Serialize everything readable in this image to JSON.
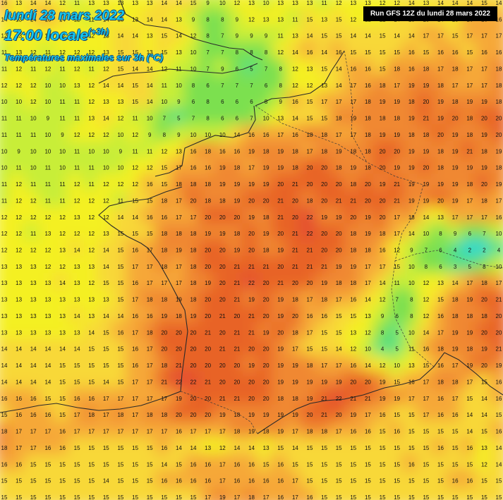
{
  "header": {
    "date": "lundi 28 mars 2022",
    "time": "17:00 locale",
    "offset": "(+3h)",
    "parameter": "Températures maximales sur 3h (°C)"
  },
  "run_label": "Run GFS 12Z du lundi 28 mars 2022",
  "units": "°C",
  "colors": {
    "c0": "#1ad8d0",
    "c4": "#58e080",
    "c8": "#7ce050",
    "c11": "#c8ee38",
    "c13": "#f4f020",
    "c15": "#f8d838",
    "c17": "#f6a838",
    "c19": "#f08830",
    "c21": "#e86428",
    "c22": "#e44c30"
  },
  "grid_values": [
    "16 13 14 14 12 11 13 13 13 13 13 14 14 15 9 10 12 13 10 13 13 13 11 12 13 13 12 12 14 13 14 14 14 15 14",
    "14 13 14 16 14 12 11 14 13 13 14 14 13 9 8 8 9 12 13 13 11 15 13 15 12 12 12 14 15 15 14 13 16 16 16",
    "12 13 12 13 12 12 12 13 14 14 13 15 14 12 8 7 9 9 9 11 13 14 15 15 14 14 15 14 14 17 17 15 17 17 17",
    "11 13 12 11 12 12 12 13 15 15 13 15 13 10 7 7 8 8 8 12 14 16 14 16 15 15 15 15 16 15 16 16 15 16 16",
    "11 12 11 12 11 12 11 12 15 14 14 12 11 10 7 9 6 5 7 8 12 13 15 14 16 16 15 18 16 18 17 18 17 17 18",
    "12 12 12 10 10 13 12 14 14 15 14 11 10 8 6 7 7 7 6 8 12 12 13 14 17 16 18 17 19 19 18 17 17 17 18",
    "10 10 12 10 11 11 12 13 13 15 14 10 9 6 8 6 6 6 8 9 16 15 17 17 17 18 19 19 18 20 19 18 19 19 18",
    "11 11 10 9 11 11 13 14 12 11 10 7 5 7 8 6 6 7 10 13 14 15 15 18 19 18 18 18 19 21 19 20 18 20 20",
    "11 11 11 10 9 12 12 12 10 12 9 8 9 10 10 10 14 16 16 17 16 18 18 17 17 18 19 19 18 18 20 19 18 19 20",
    "10 9 10 10 10 11 10 10 9 11 11 12 13 16 18 16 16 19 18 19 18 17 18 19 18 18 20 20 19 19 18 19 21 18 19",
    "10 11 10 11 10 11 11 10 10 12 12 15 17 16 16 19 18 17 19 19 18 20 20 18 19 18 20 19 19 20 18 19 19 19 18",
    "11 12 11 11 11 12 11 12 12 12 16 15 18 18 18 19 19 19 19 20 21 20 20 20 18 20 19 21 19 19 19 19 18 20 19",
    "11 12 12 11 11 12 12 12 11 15 15 18 17 20 18 18 19 20 20 21 20 18 20 21 21 20 20 21 19 19 20 19 17 18 17",
    "12 12 12 12 12 13 12 12 14 14 16 16 17 17 20 20 20 19 18 21 20 22 19 19 20 19 20 17 18 14 13 17 17 17 16",
    "12 12 11 13 12 12 12 13 15 15 15 18 18 18 19 19 18 20 19 20 21 22 20 20 18 19 18 17 14 10 8 9 6 7 10",
    "12 12 12 12 13 14 12 14 15 16 17 18 19 18 20 20 19 20 18 19 21 21 20 20 18 18 16 12 9 7 6 4 2 2 4",
    "13 13 13 12 12 13 13 14 15 17 17 18 17 18 20 20 21 21 21 20 21 21 21 19 19 17 17 15 10 8 6 3 5 8 10",
    "13 13 13 13 14 13 12 15 15 16 17 17 17 18 19 20 21 22 20 21 20 20 19 18 18 17 14 11 10 12 13 14 17 18 17",
    "13 13 13 13 13 13 13 13 15 17 18 18 19 18 20 20 21 19 20 19 18 17 18 17 16 14 12 7 8 12 15 18 19 20 21",
    "13 13 13 13 13 14 13 14 14 16 16 19 18 19 20 21 20 21 20 19 20 16 16 15 15 13 9 6 8 12 16 18 18 18 20",
    "13 13 13 13 13 13 14 15 16 17 18 20 20 20 21 20 21 21 19 20 18 17 15 15 13 12 8 5 10 14 17 19 19 20 20",
    "14 14 14 14 14 14 15 15 15 16 17 20 20 20 20 21 21 20 20 19 17 15 15 14 12 10 4 5 11 16 18 19 18 19 21",
    "14 14 14 14 15 15 15 15 15 16 17 18 21 20 20 20 20 19 20 19 19 18 17 17 16 14 12 10 13 15 16 17 19 20 19",
    "14 14 14 14 15 15 15 14 15 17 17 21 22 22 21 20 20 20 20 19 19 19 19 19 20 20 19 15 16 17 18 18 17 15 16",
    "16 16 16 15 15 16 16 17 17 17 17 17 19 20 20 21 21 20 20 18 18 19 21 22 21 21 19 19 17 17 16 17 15 14 16",
    "15 16 16 16 15 17 18 17 18 17 18 18 20 20 20 19 18 19 19 19 19 20 21 20 19 17 16 15 15 17 16 16 14 14 15",
    "18 17 17 17 16 17 17 17 17 17 17 17 16 17 17 17 18 19 18 19 17 18 18 17 16 16 15 16 15 15 15 15 14 15 16",
    "18 17 17 16 16 15 15 15 15 15 15 16 14 14 13 12 14 14 13 15 14 15 15 15 15 15 15 15 15 15 16 15 16 13 14",
    "16 16 15 15 15 15 15 15 15 15 15 14 15 16 16 17 16 16 15 16 15 15 15 15 15 15 15 15 16 15 15 15 15 12 14",
    "15 15 15 15 15 15 15 14 15 15 15 16 16 16 16 17 16 16 16 16 17 15 15 15 15 15 15 15 15 15 15 16 16 15 15",
    "15 15 15 15 15 15 15 15 15 15 15 15 15 15 17 19 17 18 17 16 17 16 15 15 15 15 15 15 15 15 15 15 15 15 15"
  ]
}
